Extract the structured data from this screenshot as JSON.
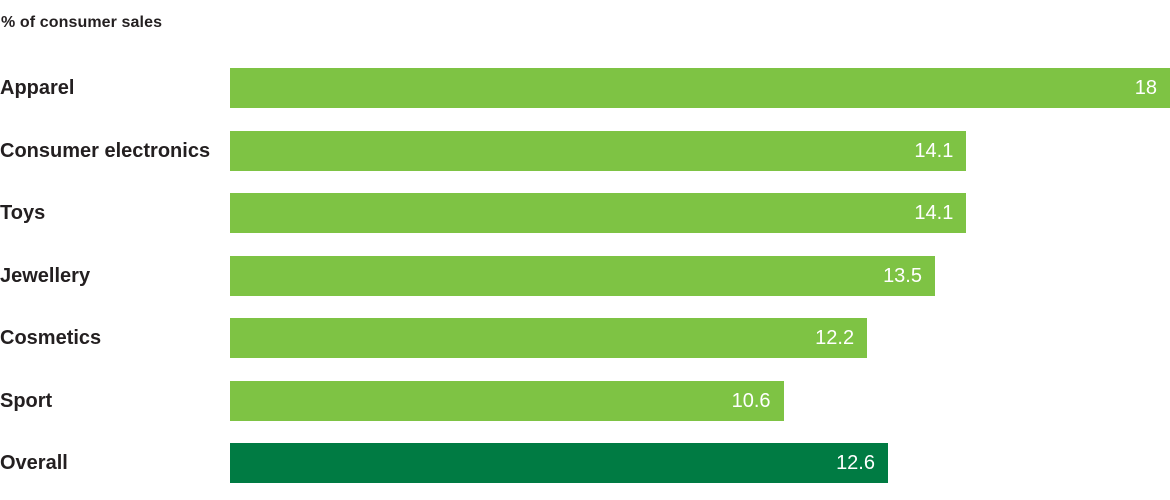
{
  "title": "% of consumer sales",
  "colors": {
    "bar": "#7EC344",
    "highlight_bar": "#007B43",
    "label_text": "#231f20",
    "value_text": "#ffffff",
    "background": "#ffffff"
  },
  "chart_data": {
    "type": "bar",
    "orientation": "horizontal",
    "title": "% of consumer sales",
    "categories": [
      "Apparel",
      "Consumer electronics",
      "Toys",
      "Jewellery",
      "Cosmetics",
      "Sport",
      "Overall"
    ],
    "values": [
      18,
      14.1,
      14.1,
      13.5,
      12.2,
      10.6,
      12.6
    ],
    "value_labels": [
      "18",
      "14.1",
      "14.1",
      "13.5",
      "12.2",
      "10.6",
      "12.6"
    ],
    "xlim": [
      0,
      18
    ],
    "highlight_category": "Overall",
    "value_label_position": "inside-end",
    "grid": false,
    "legend": false,
    "axis_ticks_visible": false
  }
}
